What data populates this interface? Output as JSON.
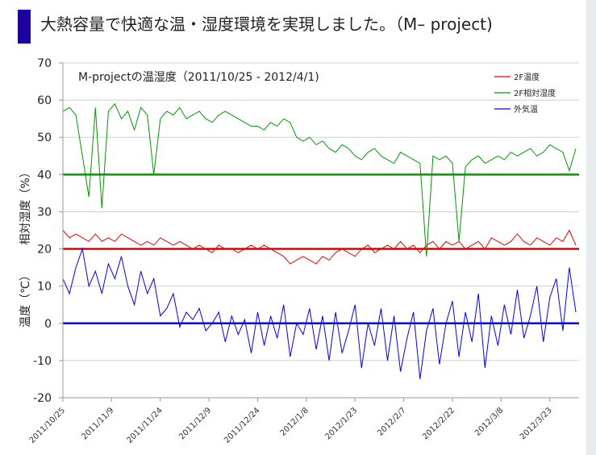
{
  "page_title": "大熱容量で快適な温・湿度環境を実現しました。（M– project)",
  "chart_data": {
    "type": "line",
    "title": "M-projectの温湿度（2011/10/25 - 2012/4/1)",
    "ylabel_top": "相対湿度（%）",
    "ylabel_bottom": "温度（℃）",
    "ylim": [
      -20,
      70
    ],
    "yticks": [
      70,
      60,
      50,
      40,
      30,
      20,
      10,
      0,
      -10,
      -20
    ],
    "x_start": "2011/10/25",
    "x_days_total": 159,
    "x_step_days": 2,
    "xticks": [
      "2011/10/25",
      "2011/11/9",
      "2011/11/24",
      "2011/12/9",
      "2011/12/24",
      "2012/1/8",
      "2012/1/23",
      "2012/2/7",
      "2012/2/22",
      "2012/3/8",
      "2012/3/23"
    ],
    "xtick_step_days": 15,
    "grid": true,
    "legend_position": "top-right",
    "reference_lines": [
      {
        "value": 40,
        "color": "#009900"
      },
      {
        "value": 20,
        "color": "#e00000"
      },
      {
        "value": 0,
        "color": "#0000e0"
      }
    ],
    "series": [
      {
        "name": "2F温度",
        "color": "#ee0000",
        "values": [
          25,
          23,
          24,
          23,
          22,
          24,
          22,
          23,
          22,
          24,
          23,
          22,
          21,
          22,
          21,
          23,
          22,
          21,
          22,
          21,
          20,
          21,
          20,
          19,
          21,
          20,
          20,
          19,
          20,
          21,
          20,
          21,
          20,
          19,
          18,
          16,
          17,
          18,
          17,
          16,
          18,
          17,
          19,
          20,
          19,
          18,
          20,
          21,
          19,
          20,
          21,
          20,
          22,
          20,
          21,
          19,
          21,
          22,
          20,
          22,
          21,
          22,
          20,
          21,
          22,
          20,
          23,
          22,
          21,
          22,
          24,
          22,
          21,
          23,
          22,
          21,
          23,
          22,
          25,
          21
        ]
      },
      {
        "name": "2F相対湿度",
        "color": "#009900",
        "values": [
          57,
          58,
          56,
          45,
          34,
          58,
          31,
          57,
          59,
          55,
          57,
          52,
          58,
          56,
          40,
          55,
          57,
          56,
          58,
          55,
          56,
          57,
          55,
          54,
          56,
          57,
          56,
          55,
          54,
          53,
          53,
          52,
          54,
          53,
          55,
          54,
          50,
          49,
          50,
          48,
          49,
          47,
          46,
          48,
          47,
          45,
          44,
          46,
          47,
          45,
          44,
          43,
          46,
          45,
          44,
          43,
          18,
          45,
          44,
          45,
          43,
          22,
          42,
          44,
          45,
          43,
          44,
          45,
          44,
          46,
          45,
          46,
          47,
          45,
          46,
          48,
          47,
          46,
          41,
          47
        ]
      },
      {
        "name": "外気温",
        "color": "#0000ee",
        "values": [
          12,
          8,
          15,
          20,
          10,
          14,
          8,
          16,
          12,
          18,
          10,
          5,
          14,
          8,
          12,
          2,
          4,
          8,
          -1,
          3,
          1,
          4,
          -2,
          0,
          3,
          -5,
          2,
          -3,
          1,
          -8,
          3,
          -6,
          2,
          -4,
          5,
          -9,
          0,
          -3,
          4,
          -7,
          2,
          -10,
          3,
          -8,
          -2,
          5,
          -12,
          0,
          -6,
          4,
          -10,
          2,
          -13,
          -4,
          3,
          -15,
          -2,
          4,
          -11,
          0,
          6,
          -9,
          3,
          -5,
          8,
          -12,
          2,
          -6,
          5,
          -3,
          9,
          -4,
          2,
          10,
          -5,
          7,
          12,
          -2,
          15,
          3
        ]
      }
    ]
  }
}
